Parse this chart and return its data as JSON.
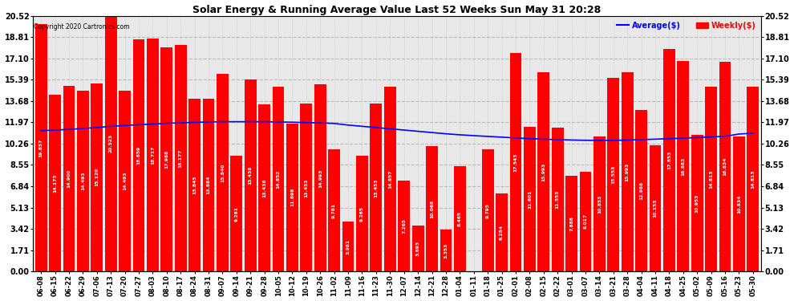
{
  "title": "Solar Energy & Running Average Value Last 52 Weeks Sun May 31 20:28",
  "copyright": "Copyright 2020 Cartronics.com",
  "bar_color": "#ff0000",
  "avg_color": "#0000ff",
  "weekly_color": "#ff0000",
  "background_color": "#ffffff",
  "plot_bg_color": "#e8e8e8",
  "grid_color": "#bbbbbb",
  "ylim": [
    0,
    20.52
  ],
  "yticks": [
    0.0,
    1.71,
    3.42,
    5.13,
    6.84,
    8.55,
    10.26,
    11.97,
    13.68,
    15.39,
    17.1,
    18.81,
    20.52
  ],
  "categories": [
    "06-08",
    "06-15",
    "06-22",
    "06-29",
    "07-06",
    "07-13",
    "07-20",
    "07-27",
    "08-03",
    "08-10",
    "08-17",
    "08-24",
    "08-31",
    "09-07",
    "09-14",
    "09-21",
    "09-28",
    "10-05",
    "10-12",
    "10-19",
    "10-26",
    "11-02",
    "11-09",
    "11-16",
    "11-23",
    "11-30",
    "12-07",
    "12-14",
    "12-21",
    "12-28",
    "01-04",
    "01-11",
    "01-18",
    "01-25",
    "02-01",
    "02-08",
    "02-15",
    "02-22",
    "03-01",
    "03-07",
    "03-14",
    "03-21",
    "03-28",
    "04-04",
    "04-11",
    "04-18",
    "04-25",
    "05-02",
    "05-09",
    "05-16",
    "05-23",
    "05-30"
  ],
  "weekly_values": [
    19.857,
    14.173,
    14.9,
    14.493,
    15.12,
    20.523,
    14.493,
    18.659,
    18.717,
    17.988,
    18.177,
    13.845,
    13.884,
    15.84,
    9.281,
    15.438,
    13.438,
    14.852,
    11.898,
    13.453,
    14.993,
    9.781,
    3.981,
    9.265,
    13.453,
    14.857,
    7.265,
    3.693,
    10.068,
    3.353,
    8.465,
    0.008,
    9.795,
    6.284,
    17.543,
    11.601,
    15.993,
    11.553,
    7.688,
    8.017,
    10.853,
    15.553,
    15.993,
    12.988,
    10.153,
    17.853,
    16.883,
    10.953,
    14.813,
    16.834,
    10.834,
    14.813
  ],
  "avg_values": [
    11.3,
    11.35,
    11.4,
    11.48,
    11.55,
    11.65,
    11.72,
    11.78,
    11.83,
    11.89,
    11.93,
    11.97,
    12.0,
    12.02,
    12.02,
    12.02,
    12.02,
    12.0,
    11.98,
    11.95,
    11.92,
    11.88,
    11.75,
    11.65,
    11.55,
    11.45,
    11.35,
    11.25,
    11.15,
    11.05,
    10.97,
    10.9,
    10.84,
    10.78,
    10.72,
    10.66,
    10.62,
    10.58,
    10.55,
    10.53,
    10.52,
    10.52,
    10.55,
    10.58,
    10.62,
    10.66,
    10.7,
    10.75,
    10.8,
    10.85,
    11.03,
    11.1
  ]
}
